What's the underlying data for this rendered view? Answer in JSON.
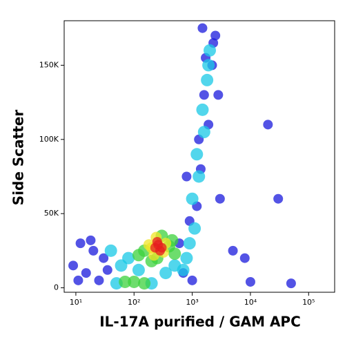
{
  "chart_data": {
    "type": "scatter",
    "xlabel": "IL-17A purified / GAM APC",
    "ylabel": "Side Scatter",
    "xscale": "log",
    "xlim": [
      6.3,
      280000
    ],
    "xticks": [
      {
        "value": 10,
        "label": "10¹"
      },
      {
        "value": 100,
        "label": "10²"
      },
      {
        "value": 1000,
        "label": "10³"
      },
      {
        "value": 10000,
        "label": "10⁴"
      },
      {
        "value": 100000,
        "label": "10⁵"
      }
    ],
    "ylim": [
      -3000,
      180000
    ],
    "yticks": [
      0,
      {
        "value": 50000,
        "label": "50K"
      },
      {
        "value": 100000,
        "label": "100K"
      },
      {
        "value": 150000,
        "label": "150K"
      }
    ],
    "series": [
      {
        "color": "#1a1adc",
        "x": [
          12,
          15,
          25,
          30,
          700,
          900,
          1300,
          1600,
          2500,
          2200,
          800,
          3000,
          5000,
          10000,
          20000,
          30000,
          50000,
          1500,
          2800,
          600,
          8000,
          35,
          20,
          1000,
          1400,
          1900,
          1700,
          2300,
          1200,
          9,
          11,
          18
        ],
        "values": [
          30000,
          10000,
          5000,
          20000,
          10000,
          45000,
          100000,
          130000,
          170000,
          150000,
          75000,
          60000,
          25000,
          4000,
          110000,
          60000,
          3000,
          175000,
          130000,
          30000,
          20000,
          12000,
          25000,
          5000,
          80000,
          110000,
          155000,
          165000,
          55000,
          15000,
          5000,
          32000
        ]
      },
      {
        "color": "#18c8e6",
        "x": [
          80,
          60,
          500,
          800,
          1000,
          1200,
          1500,
          1800,
          2000,
          50,
          200,
          40,
          1100,
          1300,
          1600,
          1900,
          900,
          700,
          120,
          350
        ],
        "values": [
          20000,
          15000,
          15000,
          20000,
          60000,
          90000,
          120000,
          140000,
          160000,
          3000,
          3000,
          25000,
          40000,
          75000,
          105000,
          150000,
          30000,
          12000,
          12000,
          10000
        ]
      },
      {
        "color": "#3cd23c",
        "x": [
          150,
          400,
          300,
          120,
          200,
          500,
          100,
          70,
          150,
          250,
          450
        ],
        "values": [
          25000,
          28000,
          35000,
          22000,
          18000,
          23000,
          4000,
          4000,
          3000,
          20000,
          32000
        ]
      },
      {
        "color": "#f0e628",
        "x": [
          200,
          320,
          240,
          180,
          350,
          220
        ],
        "values": [
          27000,
          24000,
          34000,
          29000,
          30000,
          22000
        ]
      },
      {
        "color": "#e61e1e",
        "x": [
          230,
          260,
          280,
          250,
          300
        ],
        "values": [
          27000,
          29000,
          25000,
          31000,
          27000
        ]
      }
    ]
  }
}
